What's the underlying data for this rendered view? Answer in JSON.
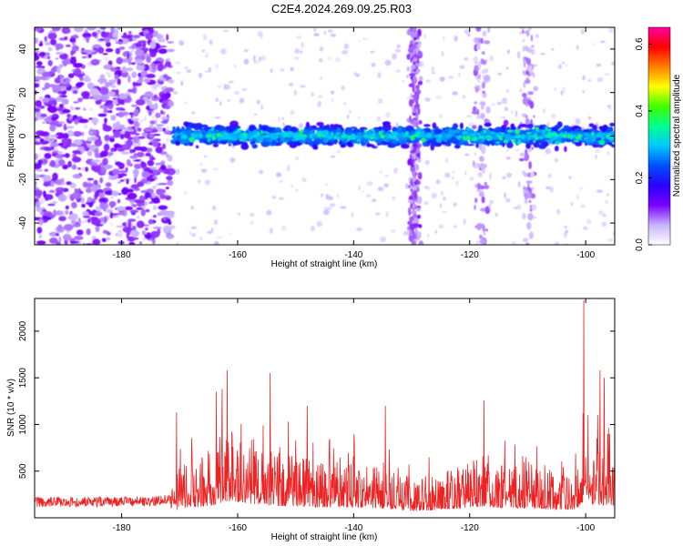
{
  "figure": {
    "title": "C2E4.2024.269.09.25.R03"
  },
  "chart_data": [
    {
      "type": "heatmap",
      "panel": "spectrogram",
      "xlabel": "Height of straight line (km)",
      "ylabel": "Frequency (Hz)",
      "xlim": [
        -195,
        -95
      ],
      "ylim": [
        -50,
        50
      ],
      "xticks": [
        -180,
        -160,
        -140,
        -120,
        -100
      ],
      "yticks": [
        -40,
        -20,
        0,
        20,
        40
      ],
      "band_frequency_hz": [
        -7,
        7
      ],
      "noise_region_x": [
        -195,
        -173
      ],
      "signal_onset_x": -171,
      "vertical_stripe_x": [
        -129.5,
        -118,
        -110
      ],
      "colorbar": {
        "label": "Normalized spectral amplitude",
        "range": [
          0,
          0.65
        ],
        "ticks": [
          0.0,
          0.2,
          0.4,
          0.6
        ],
        "colormap": [
          "#ffffff",
          "#c9b3ff",
          "#7a00ff",
          "#2a00ff",
          "#0050ff",
          "#00c8ff",
          "#00ff90",
          "#40ff00",
          "#ffff00",
          "#ff8000",
          "#ff0000",
          "#ff00a0"
        ]
      }
    },
    {
      "type": "line",
      "panel": "snr",
      "xlabel": "Height of straight line (km)",
      "ylabel": "SNR (10 * v/v)",
      "xlim": [
        -195,
        -95
      ],
      "ylim": [
        0,
        2350
      ],
      "xticks": [
        -180,
        -160,
        -140,
        -120,
        -100
      ],
      "yticks": [
        500,
        1000,
        1500,
        2000
      ],
      "color": "#ee2222",
      "envelope": {
        "x": [
          -195,
          -185,
          -175,
          -171.5,
          -170,
          -165,
          -162,
          -160,
          -156,
          -154,
          -150,
          -146,
          -140,
          -134,
          -130,
          -126,
          -122,
          -118,
          -114,
          -110,
          -106,
          -102,
          -100,
          -98,
          -95
        ],
        "y": [
          170,
          170,
          175,
          200,
          400,
          500,
          700,
          650,
          550,
          520,
          480,
          450,
          430,
          380,
          280,
          330,
          400,
          480,
          420,
          380,
          360,
          350,
          600,
          550,
          520
        ]
      },
      "peaks": {
        "x": [
          -170.5,
          -163.7,
          -162.7,
          -161.8,
          -154.4,
          -148,
          -134.5,
          -117.5,
          -100.3,
          -99.6,
          -97.5,
          -96.8
        ],
        "y": [
          1130,
          1350,
          1380,
          1580,
          1550,
          1200,
          1200,
          1260,
          2330,
          1100,
          1580,
          1500
        ]
      }
    }
  ]
}
